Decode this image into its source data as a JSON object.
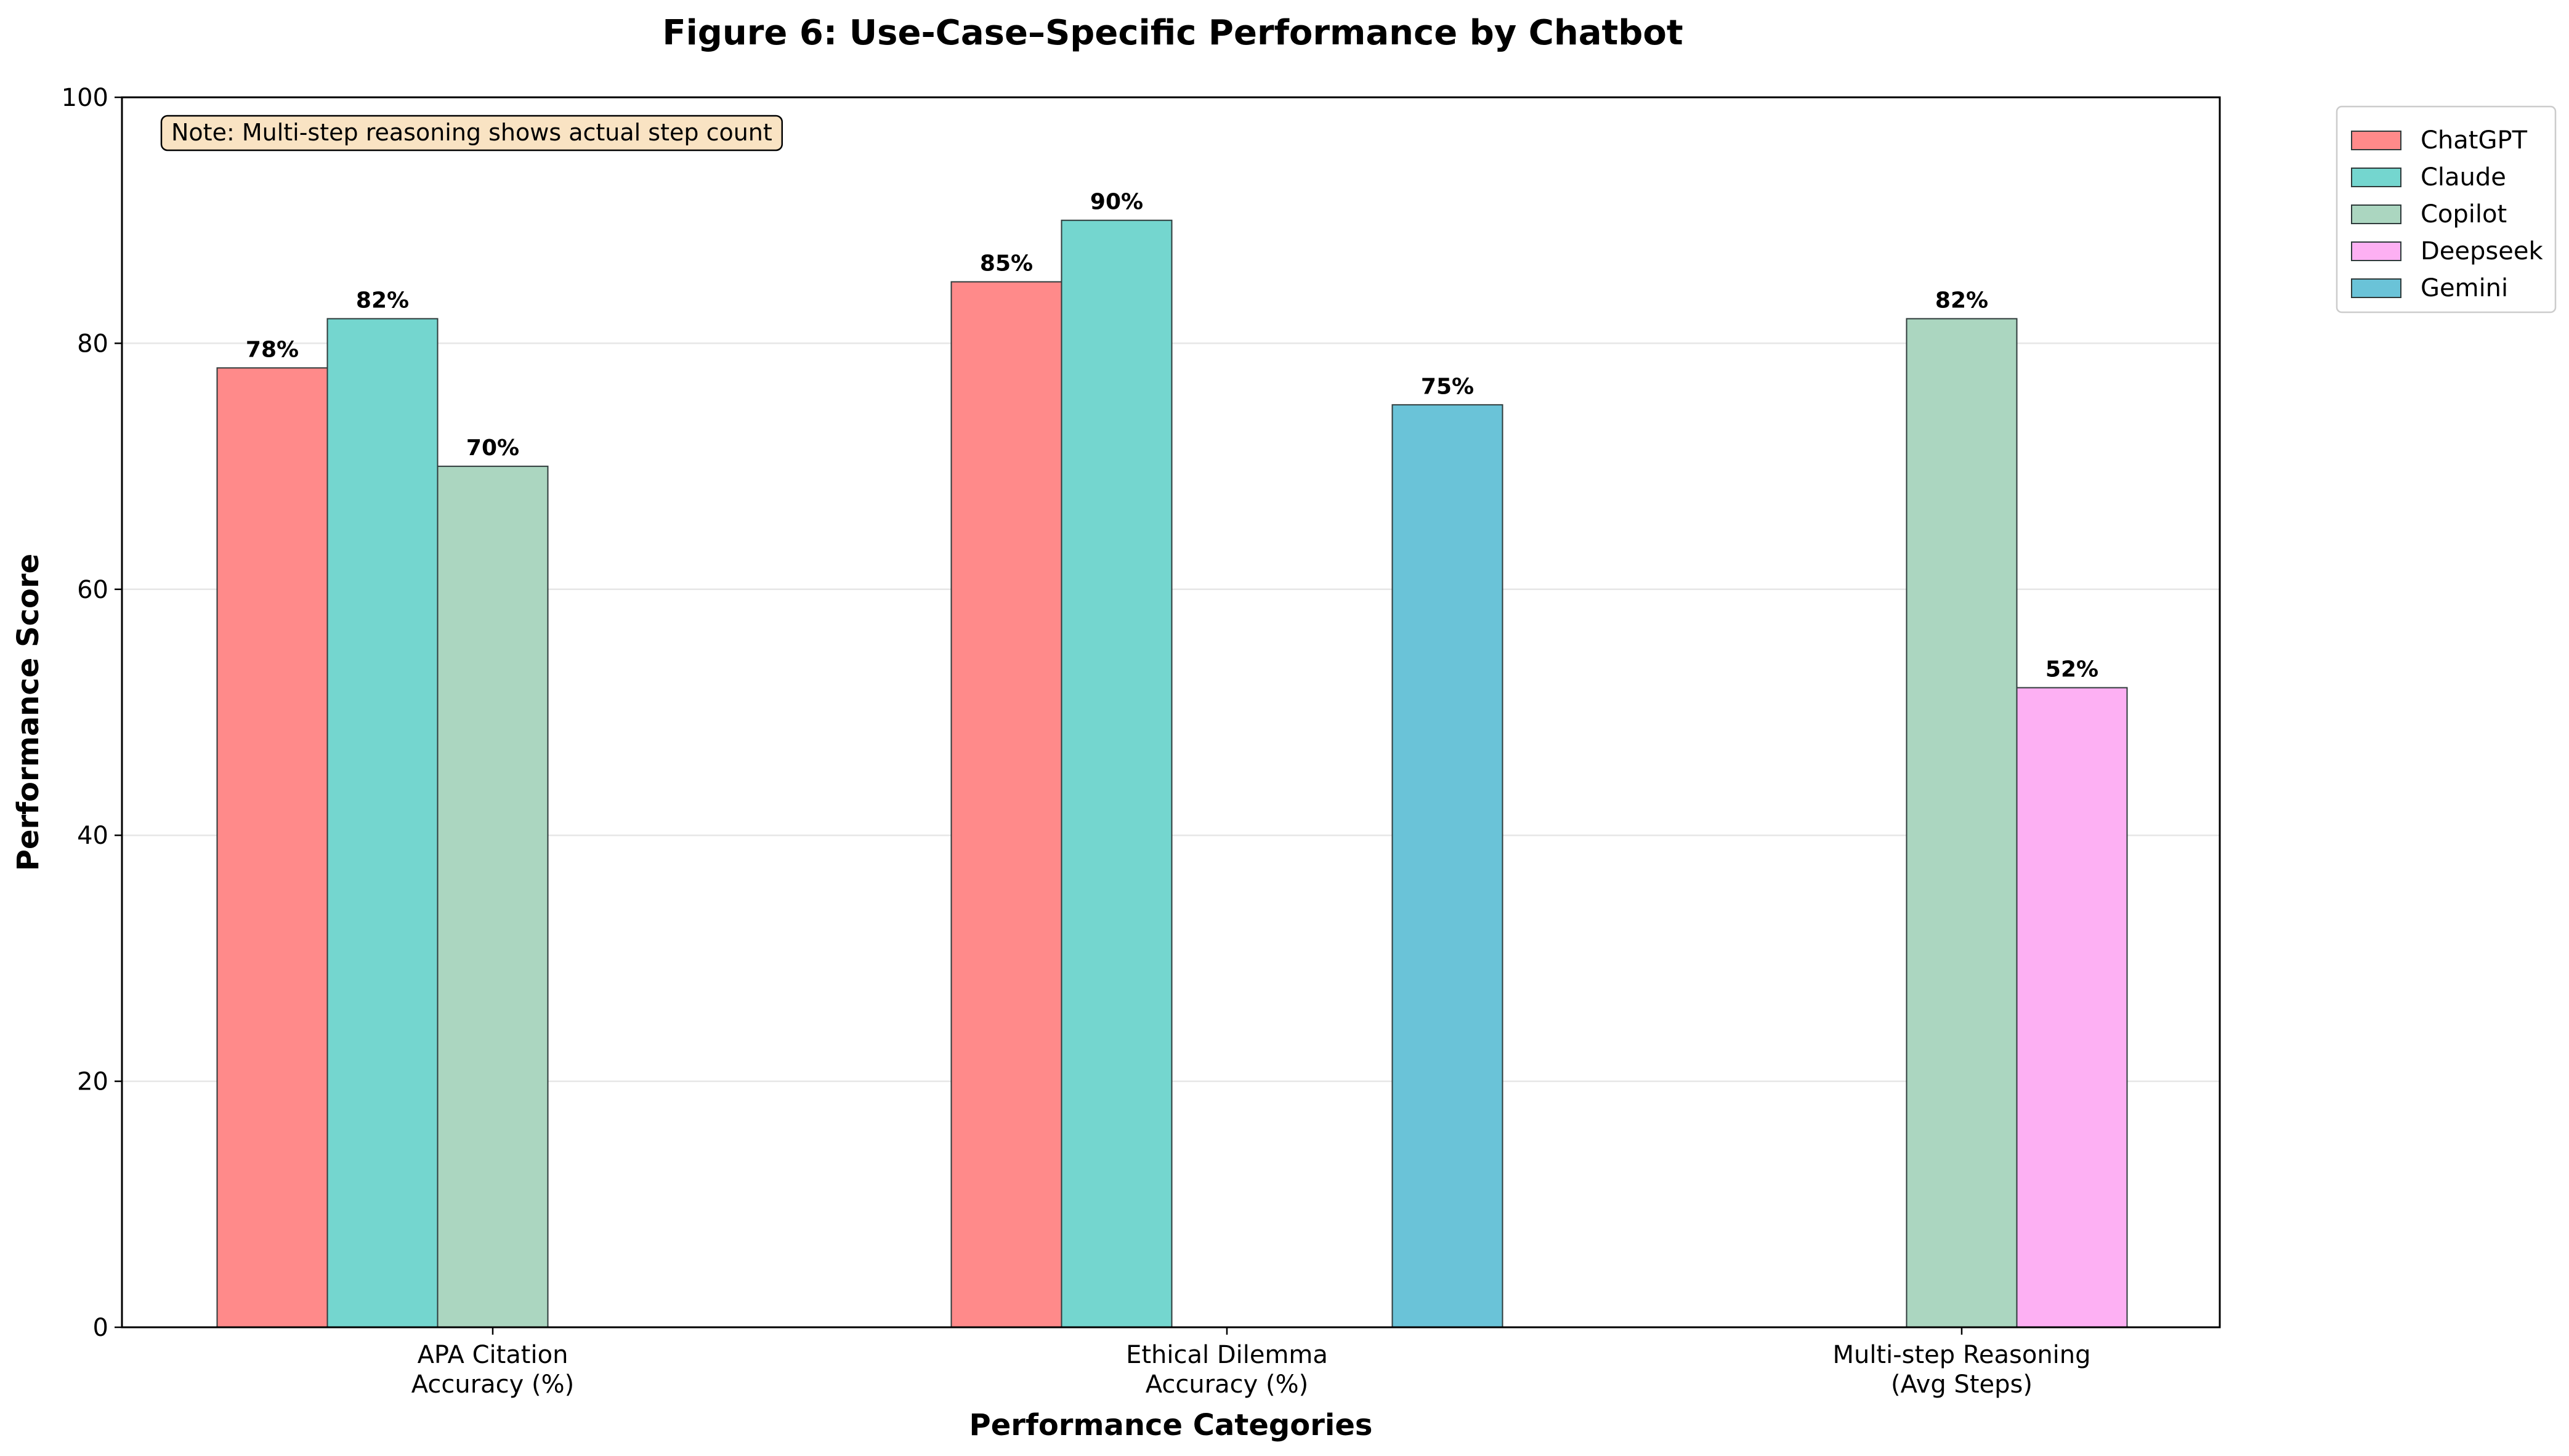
{
  "chart_data": {
    "type": "bar",
    "title": "Figure 6: Use-Case–Specific Performance by Chatbot",
    "xlabel": "Performance Categories",
    "ylabel": "Performance Score",
    "ylim": [
      0,
      100
    ],
    "yticks": [
      0,
      20,
      40,
      60,
      80,
      100
    ],
    "grid": "y",
    "legend_position": "outside-top-right",
    "categories": [
      [
        "APA Citation",
        "Accuracy (%)"
      ],
      [
        "Ethical Dilemma",
        "Accuracy (%)"
      ],
      [
        "Multi-step Reasoning",
        "(Avg Steps)"
      ]
    ],
    "series": [
      {
        "name": "ChatGPT",
        "color": "#FF8A8A",
        "values": [
          78,
          85,
          null
        ]
      },
      {
        "name": "Claude",
        "color": "#74D6CF",
        "values": [
          82,
          90,
          null
        ]
      },
      {
        "name": "Copilot",
        "color": "#ABD6C0",
        "values": [
          70,
          null,
          82
        ]
      },
      {
        "name": "Deepseek",
        "color": "#FDB0F3",
        "values": [
          null,
          null,
          52
        ]
      },
      {
        "name": "Gemini",
        "color": "#6AC3D8",
        "values": [
          null,
          75,
          null
        ]
      }
    ],
    "value_suffix": "%",
    "note": "Note: Multi-step reasoning shows actual step count"
  }
}
